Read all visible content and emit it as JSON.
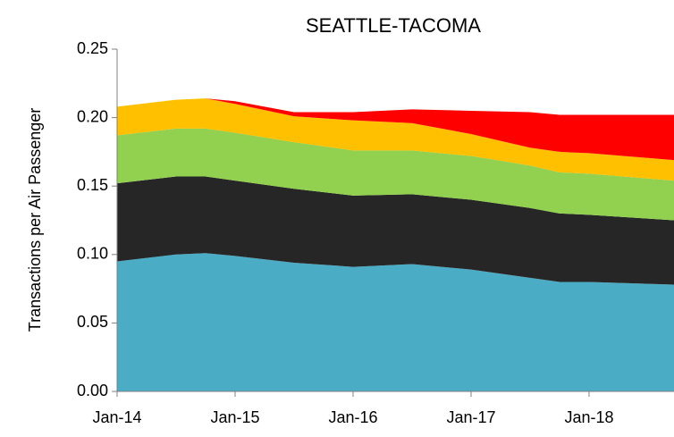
{
  "chart_data": {
    "type": "stacked_area",
    "title": "SEATTLE-TACOMA",
    "y_label": "Transactions per Air Passenger",
    "x": [
      2014,
      2014.5,
      2014.75,
      2015,
      2015.5,
      2016,
      2016.5,
      2017,
      2017.5,
      2017.75,
      2018,
      2018.72
    ],
    "xlim": [
      2014,
      2018.72
    ],
    "xticks": [
      {
        "value": 2014,
        "label": "Jan-14"
      },
      {
        "value": 2015,
        "label": "Jan-15"
      },
      {
        "value": 2016,
        "label": "Jan-16"
      },
      {
        "value": 2017,
        "label": "Jan-17"
      },
      {
        "value": 2018,
        "label": "Jan-18"
      }
    ],
    "ylim": [
      0,
      0.25
    ],
    "yticks": [
      {
        "value": 0,
        "label": "0.00"
      },
      0.05,
      {
        "value": 0.1,
        "label": "0.10"
      },
      0.15,
      {
        "value": 0.2,
        "label": "0.20"
      },
      0.25
    ],
    "series": [
      {
        "color": "#4bacc6",
        "values": [
          0.095,
          0.1,
          0.101,
          0.099,
          0.094,
          0.091,
          0.093,
          0.089,
          0.083,
          0.08,
          0.08,
          0.078
        ]
      },
      {
        "color": "#262626",
        "values": [
          0.057,
          0.057,
          0.056,
          0.055,
          0.054,
          0.052,
          0.051,
          0.051,
          0.051,
          0.05,
          0.049,
          0.047
        ]
      },
      {
        "color": "#92d050",
        "values": [
          0.035,
          0.035,
          0.035,
          0.035,
          0.034,
          0.033,
          0.032,
          0.032,
          0.031,
          0.03,
          0.03,
          0.029
        ]
      },
      {
        "color": "#ffc000",
        "values": [
          0.021,
          0.021,
          0.022,
          0.021,
          0.019,
          0.022,
          0.02,
          0.016,
          0.013,
          0.015,
          0.015,
          0.015
        ]
      },
      {
        "color": "#ff0000",
        "values": [
          0,
          0,
          0,
          0.002,
          0.003,
          0.006,
          0.01,
          0.017,
          0.026,
          0.027,
          0.028,
          0.033
        ]
      }
    ]
  }
}
